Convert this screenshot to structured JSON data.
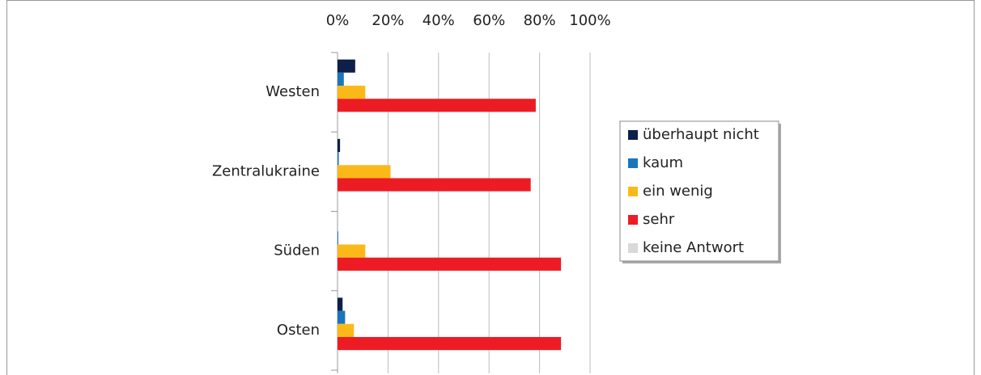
{
  "chart_data": {
    "type": "hbar",
    "categories": [
      "Westen",
      "Zentralukraine",
      "Süden",
      "Osten"
    ],
    "series": [
      {
        "name": "überhaupt nicht",
        "color": "#0d1f4a",
        "values": [
          7,
          1,
          0,
          2
        ]
      },
      {
        "name": "kaum",
        "color": "#1b75bb",
        "values": [
          2.5,
          0.5,
          0.3,
          3
        ]
      },
      {
        "name": "ein wenig",
        "color": "#fbb919",
        "values": [
          11,
          21,
          11,
          6.5
        ]
      },
      {
        "name": "sehr",
        "color": "#ed1c24",
        "values": [
          78.5,
          76.5,
          88.5,
          88.5
        ]
      },
      {
        "name": "keine Antwort",
        "color": "#d9d9d9",
        "values": [
          0,
          0,
          0,
          0
        ]
      }
    ],
    "xlim": [
      0,
      100
    ],
    "xticks": [
      {
        "value": 0,
        "label": "0%"
      },
      {
        "value": 20,
        "label": "20%"
      },
      {
        "value": 40,
        "label": "40%"
      },
      {
        "value": 60,
        "label": "60%"
      },
      {
        "value": 80,
        "label": "80%"
      },
      {
        "value": 100,
        "label": "100%"
      }
    ],
    "grid": true,
    "legend": "right"
  }
}
